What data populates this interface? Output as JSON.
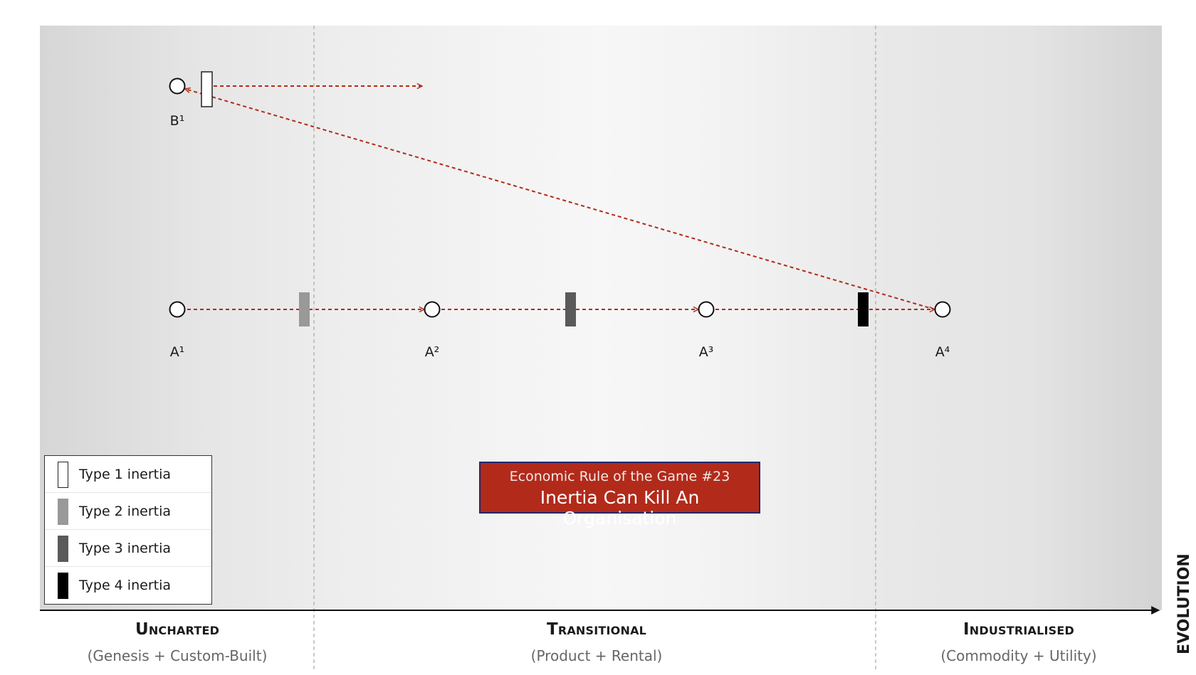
{
  "diagram": {
    "components": [
      {
        "id": "A1",
        "label": "A¹"
      },
      {
        "id": "A2",
        "label": "A²"
      },
      {
        "id": "A3",
        "label": "A³"
      },
      {
        "id": "A4",
        "label": "A⁴"
      },
      {
        "id": "B1",
        "label": "B¹"
      }
    ],
    "flows": [
      {
        "from": "A1",
        "to": "A2",
        "inertia": "Type 2 inertia"
      },
      {
        "from": "A2",
        "to": "A3",
        "inertia": "Type 3 inertia"
      },
      {
        "from": "A3",
        "to": "A4",
        "inertia": "Type 4 inertia"
      },
      {
        "from": "A4",
        "to": "B1",
        "inertia": "Type 1 inertia"
      }
    ],
    "colors": {
      "flow": "#b22a1a",
      "type1": "#ffffff",
      "type2": "#999999",
      "type3": "#5a5a5a",
      "type4": "#000000"
    }
  },
  "legend": {
    "items": [
      {
        "label": "Type 1 inertia",
        "color": "#ffffff"
      },
      {
        "label": "Type 2 inertia",
        "color": "#999999"
      },
      {
        "label": "Type 3 inertia",
        "color": "#5a5a5a"
      },
      {
        "label": "Type 4 inertia",
        "color": "#000000"
      }
    ]
  },
  "rule": {
    "title": "Economic Rule of the Game #23",
    "subtitle": "Inertia Can Kill An Organisation",
    "background": "#b22a1a",
    "border": "#1d2a6e"
  },
  "axis": {
    "label": "EVOLUTION",
    "stages": [
      {
        "title": "Uncharted",
        "subtitle": "(Genesis + Custom-Built)"
      },
      {
        "title": "Transitional",
        "subtitle": "(Product + Rental)"
      },
      {
        "title": "Industrialised",
        "subtitle": "(Commodity + Utility)"
      }
    ]
  }
}
